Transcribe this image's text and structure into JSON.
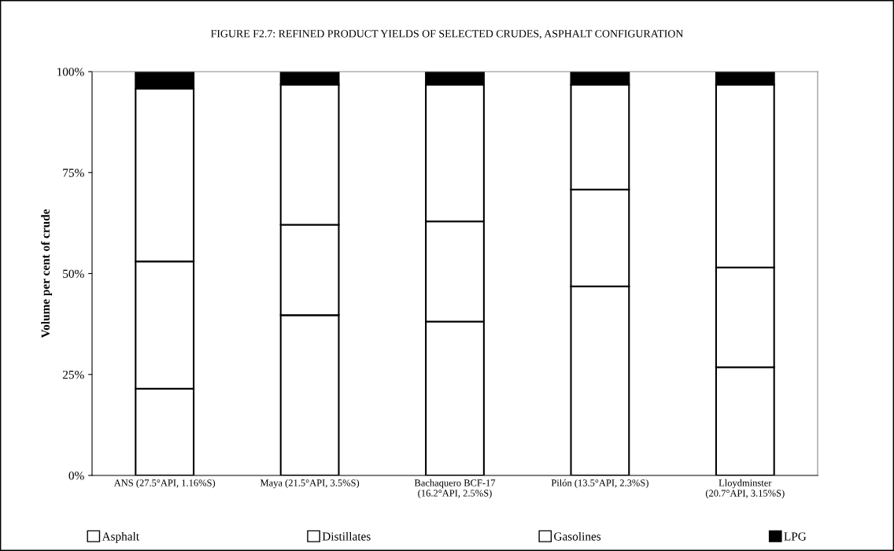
{
  "chart_data": {
    "type": "bar",
    "stacked": true,
    "title": "FIGURE F2.7: REFINED PRODUCT YIELDS OF SELECTED CRUDES, ASPHALT CONFIGURATION",
    "ylabel": "Volume per cent of crude",
    "categories": [
      "ANS (27.5°API, 1.16%S)",
      "Maya (21.5°API, 3.5%S)",
      "Bachaquero BCF-17\n(16.2°API, 2.5%S)",
      "Pilón (13.5°API, 2.3%S)",
      "Lloydminster\n(20.7°API, 3.15%S)"
    ],
    "series": [
      {
        "name": "Asphalt",
        "color": "#ffffff",
        "values": [
          21.5,
          39.7,
          38.1,
          46.8,
          26.8
        ]
      },
      {
        "name": "Distillates",
        "color": "#ffffff",
        "values": [
          31.5,
          22.4,
          24.8,
          24.0,
          24.7
        ]
      },
      {
        "name": "Gasolines",
        "color": "#ffffff",
        "values": [
          42.8,
          34.7,
          33.9,
          26.0,
          45.3
        ]
      },
      {
        "name": "LPG",
        "color": "#000000",
        "values": [
          4.2,
          3.2,
          3.2,
          3.2,
          3.2
        ]
      }
    ],
    "ylim": [
      0,
      100
    ],
    "yticks": [
      {
        "value": 0,
        "label": "0%"
      },
      {
        "value": 25,
        "label": "25%"
      },
      {
        "value": 50,
        "label": "50%"
      },
      {
        "value": 75,
        "label": "75%"
      },
      {
        "value": 100,
        "label": "100%"
      }
    ],
    "grid": false,
    "legend": "bottom"
  }
}
